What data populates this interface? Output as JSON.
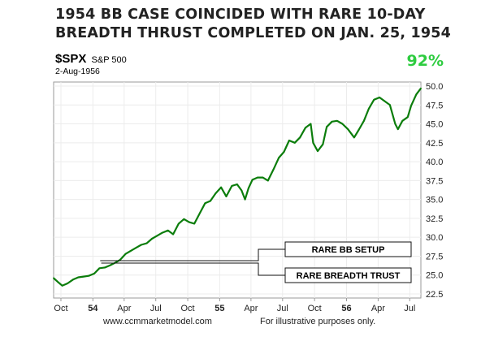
{
  "title": {
    "line1": "1954 BB CASE COINCIDED WITH RARE 10-DAY",
    "line2": "BREADTH THRUST COMPLETED ON JAN. 25, 1954"
  },
  "ticker": {
    "symbol": "$SPX",
    "name": "S&P 500",
    "date": "2-Aug-1956"
  },
  "badge": {
    "text": "92%",
    "color": "#2ecc40"
  },
  "footer": {
    "source": "www.ccmmarketmodel.com",
    "note": "For illustrative purposes only."
  },
  "chart_data": {
    "type": "line",
    "series": [
      {
        "color": "#0b7d0b",
        "x": [
          "1953-09-10",
          "1953-09-22",
          "1953-10-05",
          "1953-10-20",
          "1953-11-05",
          "1953-11-20",
          "1953-12-05",
          "1953-12-20",
          "1954-01-05",
          "1954-01-20",
          "1954-02-05",
          "1954-02-20",
          "1954-03-05",
          "1954-03-20",
          "1954-04-05",
          "1954-04-20",
          "1954-05-05",
          "1954-05-20",
          "1954-06-05",
          "1954-06-20",
          "1954-07-05",
          "1954-07-20",
          "1954-08-05",
          "1954-08-20",
          "1954-09-05",
          "1954-09-20",
          "1954-10-05",
          "1954-10-20",
          "1954-11-05",
          "1954-11-20",
          "1954-12-05",
          "1954-12-20",
          "1955-01-05",
          "1955-01-20",
          "1955-02-05",
          "1955-02-20",
          "1955-03-05",
          "1955-03-15",
          "1955-03-25",
          "1955-04-05",
          "1955-04-20",
          "1955-05-05",
          "1955-05-20",
          "1955-06-05",
          "1955-06-20",
          "1955-07-05",
          "1955-07-20",
          "1955-08-05",
          "1955-08-20",
          "1955-09-05",
          "1955-09-20",
          "1955-09-27",
          "1955-10-10",
          "1955-10-25",
          "1955-11-05",
          "1955-11-20",
          "1955-12-05",
          "1955-12-20",
          "1956-01-05",
          "1956-01-23",
          "1956-02-05",
          "1956-02-20",
          "1956-03-05",
          "1956-03-20",
          "1956-04-05",
          "1956-04-20",
          "1956-05-05",
          "1956-05-20",
          "1956-05-28",
          "1956-06-10",
          "1956-06-25",
          "1956-07-05",
          "1956-07-20",
          "1956-08-02"
        ],
        "values": [
          24.6,
          24.1,
          23.6,
          23.9,
          24.4,
          24.7,
          24.8,
          24.9,
          25.2,
          25.9,
          26.0,
          26.3,
          26.6,
          27.0,
          27.8,
          28.2,
          28.6,
          29.0,
          29.2,
          29.8,
          30.2,
          30.6,
          30.9,
          30.4,
          31.8,
          32.4,
          32.0,
          31.8,
          33.2,
          34.5,
          34.8,
          35.8,
          36.6,
          35.4,
          36.8,
          37.0,
          36.2,
          35.0,
          36.5,
          37.6,
          37.9,
          37.9,
          37.5,
          39.0,
          40.5,
          41.3,
          42.8,
          42.5,
          43.2,
          44.5,
          45.0,
          42.5,
          41.4,
          42.3,
          44.6,
          45.3,
          45.4,
          45.0,
          44.3,
          43.2,
          44.2,
          45.4,
          47.0,
          48.2,
          48.5,
          48.0,
          47.5,
          45.0,
          44.3,
          45.4,
          45.9,
          47.4,
          48.9,
          49.7
        ]
      }
    ],
    "ylim": [
      22.5,
      50.0
    ],
    "y_ticks": [
      "22.5",
      "25.0",
      "27.5",
      "30.0",
      "32.5",
      "35.0",
      "37.5",
      "40.0",
      "42.5",
      "45.0",
      "47.5",
      "50.0"
    ],
    "x_ticks": [
      {
        "label": "Oct",
        "date": "1953-10-01",
        "bold": false
      },
      {
        "label": "54",
        "date": "1954-01-01",
        "bold": true
      },
      {
        "label": "Apr",
        "date": "1954-04-01",
        "bold": false
      },
      {
        "label": "Jul",
        "date": "1954-07-01",
        "bold": false
      },
      {
        "label": "Oct",
        "date": "1954-10-01",
        "bold": false
      },
      {
        "label": "55",
        "date": "1955-01-01",
        "bold": true
      },
      {
        "label": "Apr",
        "date": "1955-04-01",
        "bold": false
      },
      {
        "label": "Jul",
        "date": "1955-07-01",
        "bold": false
      },
      {
        "label": "Oct",
        "date": "1955-10-01",
        "bold": false
      },
      {
        "label": "56",
        "date": "1956-01-01",
        "bold": true
      },
      {
        "label": "Apr",
        "date": "1956-04-01",
        "bold": false
      },
      {
        "label": "Jul",
        "date": "1956-07-01",
        "bold": false
      }
    ],
    "xlim": [
      "1953-09-10",
      "1956-08-02"
    ],
    "grid": true,
    "annotations": [
      {
        "text": "RARE BB SETUP",
        "date": "1954-01-22"
      },
      {
        "text": "RARE BREADTH TRUST",
        "date": "1954-01-25"
      }
    ]
  }
}
